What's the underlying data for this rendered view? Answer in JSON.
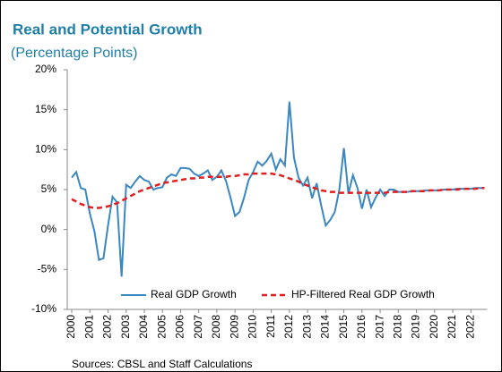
{
  "chart_data": {
    "type": "line",
    "title": "Real and Potential Growth",
    "subtitle": "(Percentage Points)",
    "source": "Sources: CBSL and Staff Calculations",
    "categories": [
      "2000",
      null,
      null,
      null,
      "2001",
      null,
      null,
      null,
      "2002",
      null,
      null,
      null,
      "2003",
      null,
      null,
      null,
      "2004",
      null,
      null,
      null,
      "2005",
      null,
      null,
      null,
      "2006",
      null,
      null,
      null,
      "2007",
      null,
      null,
      null,
      "2008",
      null,
      null,
      null,
      "2009",
      null,
      null,
      null,
      "2010",
      null,
      null,
      null,
      "2011",
      null,
      null,
      null,
      "2012",
      null,
      null,
      null,
      "2013",
      null,
      null,
      null,
      "2014",
      null,
      null,
      null,
      "2015",
      null,
      null,
      null,
      "2016",
      null,
      null,
      null,
      "2017",
      null,
      null,
      null,
      "2018",
      null,
      null,
      null,
      "2019",
      null,
      null,
      null,
      "2020",
      null,
      null,
      null,
      "2021",
      null,
      null,
      null,
      "2022",
      null,
      null,
      null
    ],
    "series": [
      {
        "name": "Real GDP Growth",
        "color": "#3a87c2",
        "dashed": false,
        "values": [
          6.5,
          7.2,
          5.2,
          5.0,
          2.0,
          -0.2,
          -3.8,
          -3.6,
          0.5,
          4.1,
          3.4,
          -5.9,
          5.6,
          5.2,
          6.0,
          6.7,
          6.2,
          6.0,
          5.0,
          5.2,
          5.3,
          6.5,
          6.9,
          6.7,
          7.7,
          7.7,
          7.6,
          7.0,
          6.7,
          7.0,
          7.4,
          6.2,
          6.6,
          7.4,
          6.1,
          4.0,
          1.7,
          2.2,
          4.0,
          6.2,
          7.2,
          8.5,
          8.0,
          8.6,
          9.5,
          7.5,
          8.8,
          8.0,
          16.0,
          9.0,
          6.5,
          5.5,
          6.5,
          3.9,
          5.8,
          3.0,
          0.5,
          1.2,
          2.2,
          5.0,
          10.2,
          4.5,
          6.8,
          5.2,
          2.6,
          5.0,
          2.8,
          4.0,
          5.0,
          4.2,
          5.0,
          5.0,
          4.7,
          4.7,
          4.7,
          4.8,
          4.8,
          4.8,
          4.9,
          4.9,
          4.9,
          4.9,
          5.0,
          5.0,
          5.0,
          5.1,
          5.1,
          5.1,
          5.1,
          5.2,
          5.2,
          5.2
        ]
      },
      {
        "name": "HP-Filtered Real GDP Growth",
        "color": "#e02020",
        "dashed": true,
        "values": [
          3.8,
          3.5,
          3.2,
          3.0,
          2.8,
          2.7,
          2.7,
          2.8,
          2.9,
          3.1,
          3.3,
          3.6,
          3.9,
          4.2,
          4.5,
          4.8,
          5.0,
          5.2,
          5.4,
          5.6,
          5.8,
          5.9,
          6.0,
          6.1,
          6.2,
          6.3,
          6.4,
          6.4,
          6.5,
          6.5,
          6.6,
          6.6,
          6.6,
          6.6,
          6.6,
          6.7,
          6.7,
          6.8,
          6.9,
          6.9,
          7.0,
          7.0,
          7.0,
          7.0,
          7.0,
          6.9,
          6.8,
          6.6,
          6.4,
          6.2,
          6.0,
          5.7,
          5.5,
          5.3,
          5.1,
          4.9,
          4.8,
          4.7,
          4.7,
          4.6,
          4.6,
          4.6,
          4.6,
          4.6,
          4.6,
          4.6,
          4.6,
          4.6,
          4.6,
          4.6,
          4.7,
          4.7,
          4.7,
          4.7,
          4.7,
          4.8,
          4.8,
          4.8,
          4.8,
          4.9,
          4.9,
          4.9,
          5.0,
          5.0,
          5.0,
          5.0,
          5.1,
          5.1,
          5.1,
          5.1,
          5.2,
          5.2
        ]
      }
    ],
    "ylim": [
      -10,
      20
    ],
    "yticks": [
      {
        "value": -10,
        "label": "-10%"
      },
      {
        "value": -5,
        "label": "-5%"
      },
      {
        "value": 0,
        "label": "0%"
      },
      {
        "value": 5,
        "label": "5%"
      },
      {
        "value": 10,
        "label": "10%"
      },
      {
        "value": 15,
        "label": "15%"
      },
      {
        "value": 20,
        "label": "20%"
      }
    ],
    "grid": false
  }
}
